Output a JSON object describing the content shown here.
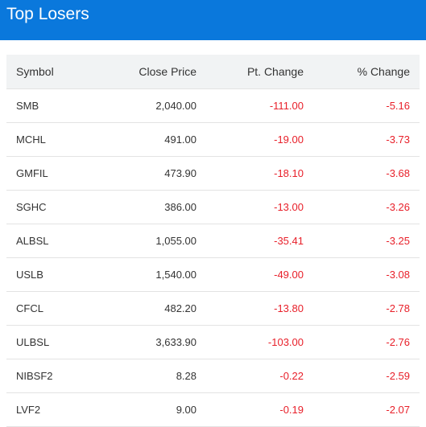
{
  "header": {
    "title": "Top Losers"
  },
  "table": {
    "columns": [
      "Symbol",
      "Close Price",
      "Pt. Change",
      "% Change"
    ],
    "rows": [
      {
        "symbol": "SMB",
        "close": "2,040.00",
        "pt": "-111.00",
        "pct": "-5.16"
      },
      {
        "symbol": "MCHL",
        "close": "491.00",
        "pt": "-19.00",
        "pct": "-3.73"
      },
      {
        "symbol": "GMFIL",
        "close": "473.90",
        "pt": "-18.10",
        "pct": "-3.68"
      },
      {
        "symbol": "SGHC",
        "close": "386.00",
        "pt": "-13.00",
        "pct": "-3.26"
      },
      {
        "symbol": "ALBSL",
        "close": "1,055.00",
        "pt": "-35.41",
        "pct": "-3.25"
      },
      {
        "symbol": "USLB",
        "close": "1,540.00",
        "pt": "-49.00",
        "pct": "-3.08"
      },
      {
        "symbol": "CFCL",
        "close": "482.20",
        "pt": "-13.80",
        "pct": "-2.78"
      },
      {
        "symbol": "ULBSL",
        "close": "3,633.90",
        "pt": "-103.00",
        "pct": "-2.76"
      },
      {
        "symbol": "NIBSF2",
        "close": "8.28",
        "pt": "-0.22",
        "pct": "-2.59"
      },
      {
        "symbol": "LVF2",
        "close": "9.00",
        "pt": "-0.19",
        "pct": "-2.07"
      }
    ]
  },
  "colors": {
    "header_bg": "#0a78dc",
    "negative": "#e8202a",
    "table_head_bg": "#f1f3f4"
  }
}
